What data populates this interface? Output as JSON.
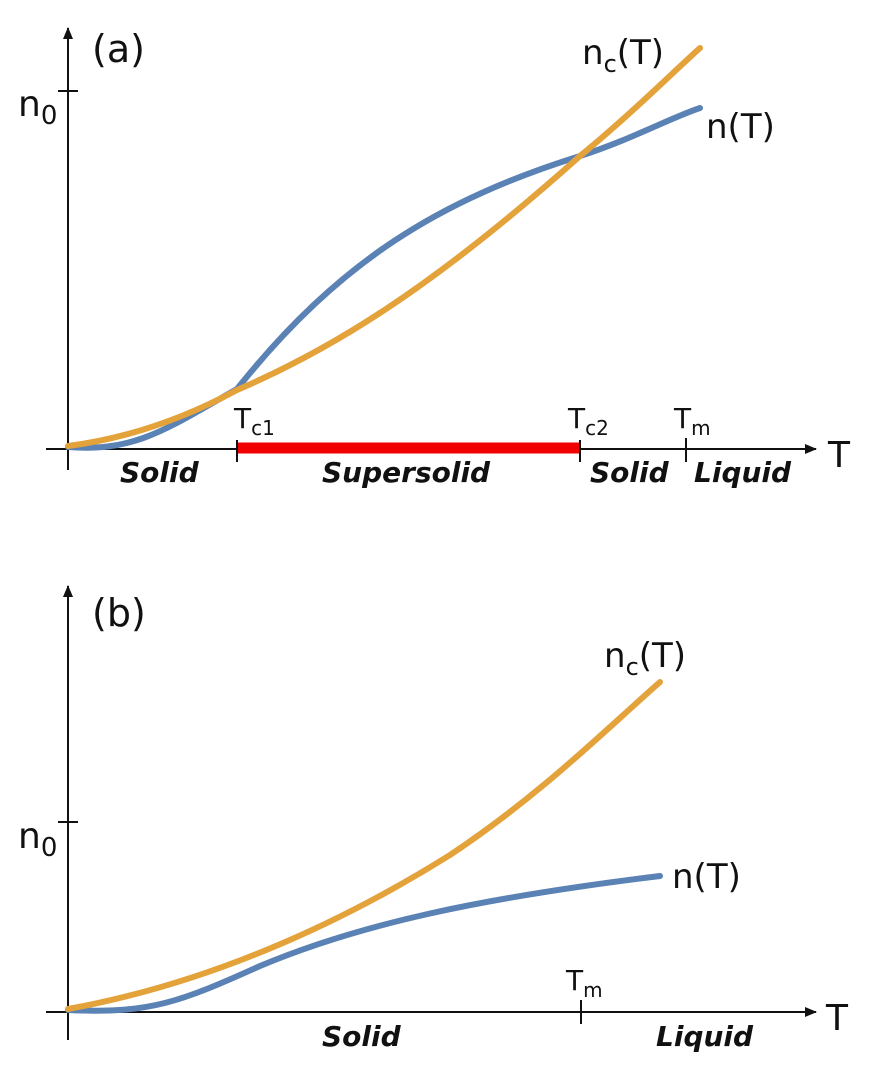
{
  "panels": [
    {
      "label": "(a)",
      "y_axis_label": "n",
      "y_axis_label_sub": "0",
      "x_axis_label": "T",
      "curve_nc": {
        "label": "n",
        "label_sub": "c",
        "label_suffix": "(T)",
        "color": "#E4A23A"
      },
      "curve_n": {
        "label": "n(T)",
        "color": "#5B82B5"
      },
      "tick_tc1": {
        "main": "T",
        "sub": "c1"
      },
      "tick_tc2": {
        "main": "T",
        "sub": "c2"
      },
      "tick_tm": {
        "main": "T",
        "sub": "m"
      },
      "supersolid_bar_color": "#F00000",
      "regions": [
        "Solid",
        "Supersolid",
        "Solid",
        "Liquid"
      ]
    },
    {
      "label": "(b)",
      "y_axis_label": "n",
      "y_axis_label_sub": "0",
      "x_axis_label": "T",
      "curve_nc": {
        "label": "n",
        "label_sub": "c",
        "label_suffix": "(T)",
        "color": "#E4A23A"
      },
      "curve_n": {
        "label": "n(T)",
        "color": "#5B82B5"
      },
      "tick_tm": {
        "main": "T",
        "sub": "m"
      },
      "regions": [
        "Solid",
        "Liquid"
      ]
    }
  ]
}
